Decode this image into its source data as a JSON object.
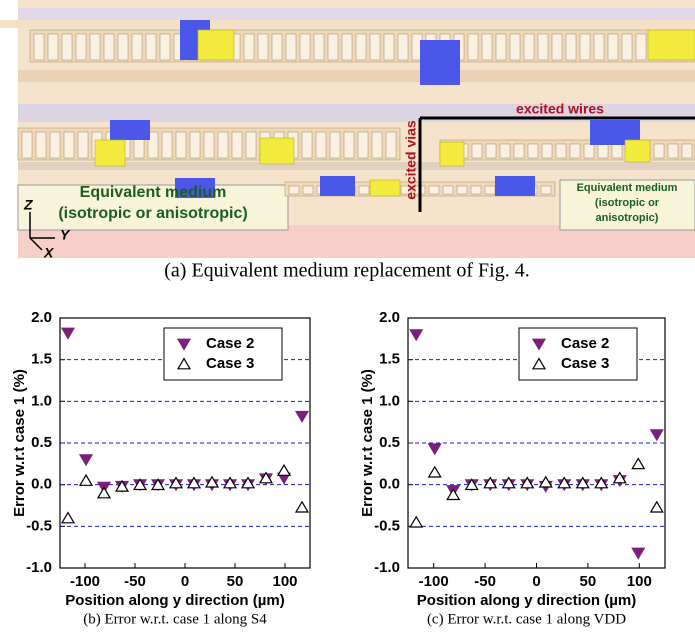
{
  "illustration": {
    "caption": "(a) Equivalent medium replacement of Fig. 4.",
    "excited_wires": "excited wires",
    "excited_vias": "excited vias",
    "medium_left": [
      "Equivalent medium",
      "(isotropic or anisotropic)"
    ],
    "medium_right": [
      "Equivalent medium",
      "(isotropic or",
      "anisotropic)"
    ],
    "axes": [
      "Z",
      "Y",
      "X"
    ]
  },
  "chart_data": [
    {
      "type": "scatter",
      "caption": "(b)  Error w.r.t. case 1 along S4",
      "x_label": "Position along y direction (µm)",
      "y_label": "Error w.r.t case 1 (%)",
      "x": [
        -117,
        -99,
        -81,
        -63,
        -45,
        -27,
        -9,
        9,
        27,
        45,
        63,
        81,
        99,
        117
      ],
      "series": [
        {
          "name": "Case 2",
          "color": "#7b1f7b",
          "marker": "triangle-down",
          "values": [
            1.82,
            0.3,
            -0.03,
            -0.02,
            0,
            0,
            0,
            0,
            0,
            0,
            0,
            0.07,
            0.08,
            0.82
          ]
        },
        {
          "name": "Case 3",
          "color": "#000000",
          "marker": "triangle-up-open",
          "values": [
            -0.4,
            0.05,
            -0.1,
            -0.02,
            0,
            0,
            0.02,
            0.02,
            0.03,
            0.02,
            0.02,
            0.08,
            0.17,
            -0.27
          ]
        }
      ],
      "xlim": [
        -125,
        125
      ],
      "xticks": [
        -100,
        -50,
        0,
        50,
        100
      ],
      "ylim": [
        -1,
        2
      ],
      "yticks": [
        {
          "value": -1,
          "label": "-1.0"
        },
        -0.5,
        {
          "value": 0,
          "label": "0.0"
        },
        0.5,
        {
          "value": 1,
          "label": "1.0"
        },
        1.5,
        {
          "value": 2,
          "label": "2.0"
        }
      ],
      "grid": true,
      "grid_color": "#1a1acc",
      "legend": "upper right"
    },
    {
      "type": "scatter",
      "caption": "(c) Error w.r.t. case 1 along VDD",
      "x_label": "Position along y direction (µm)",
      "y_label": "Error w.r.t case 1 (%)",
      "x": [
        -117,
        -99,
        -81,
        -63,
        -45,
        -27,
        -9,
        9,
        27,
        45,
        63,
        81,
        99,
        117
      ],
      "series": [
        {
          "name": "Case 2",
          "color": "#7b1f7b",
          "marker": "triangle-down",
          "values": [
            1.8,
            0.43,
            -0.07,
            0,
            0,
            0,
            0,
            -0.02,
            0,
            0,
            0,
            0.05,
            -0.82,
            0.6
          ]
        },
        {
          "name": "Case 3",
          "color": "#000000",
          "marker": "triangle-up-open",
          "values": [
            -0.45,
            0.15,
            -0.12,
            0,
            0.02,
            0.02,
            0.02,
            0.03,
            0.02,
            0.02,
            0.02,
            0.08,
            0.25,
            -0.27
          ]
        }
      ],
      "xlim": [
        -125,
        125
      ],
      "xticks": [
        -100,
        -50,
        0,
        50,
        100
      ],
      "ylim": [
        -1,
        2
      ],
      "yticks": [
        {
          "value": -1,
          "label": "-1.0"
        },
        -0.5,
        {
          "value": 0,
          "label": "0.0"
        },
        0.5,
        {
          "value": 1,
          "label": "1.0"
        },
        1.5,
        {
          "value": 2,
          "label": "2.0"
        }
      ],
      "grid": true,
      "grid_color": "#1a1acc",
      "legend": "upper right"
    }
  ]
}
